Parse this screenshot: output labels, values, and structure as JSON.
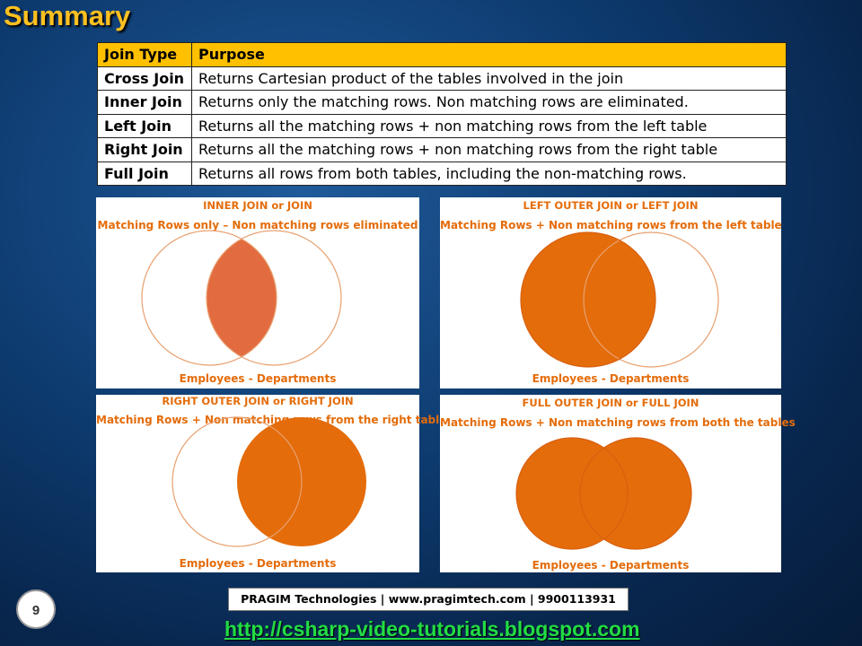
{
  "slide": {
    "title": "Summary",
    "page_number": "9"
  },
  "table": {
    "headers": [
      "Join Type",
      "Purpose"
    ],
    "rows": [
      {
        "type": "Cross Join",
        "purpose": "Returns Cartesian product of the tables involved in the join"
      },
      {
        "type": "Inner Join",
        "purpose": "Returns only the matching rows. Non matching rows are eliminated."
      },
      {
        "type": "Left Join",
        "purpose": "Returns all the matching rows + non matching rows from the left table"
      },
      {
        "type": "Right Join",
        "purpose": "Returns all the matching rows + non matching rows from the right table"
      },
      {
        "type": "Full Join",
        "purpose": "Returns all rows from both tables, including the non-matching rows."
      }
    ]
  },
  "diagrams": [
    {
      "title": "INNER JOIN or JOIN",
      "subtitle": "Matching Rows only – Non matching rows eliminated",
      "footer": "Employees - Departments",
      "fill": "intersection"
    },
    {
      "title": "LEFT OUTER JOIN or LEFT JOIN",
      "subtitle": "Matching Rows + Non matching rows from the left table",
      "footer": "Employees - Departments",
      "fill": "left"
    },
    {
      "title": "RIGHT OUTER JOIN or RIGHT JOIN",
      "subtitle": "Matching Rows + Non matching rows from the right table",
      "footer": "Employees - Departments",
      "fill": "right"
    },
    {
      "title": "FULL OUTER JOIN or FULL JOIN",
      "subtitle": "Matching Rows + Non matching rows from both the tables",
      "footer": "Employees - Departments",
      "fill": "both"
    }
  ],
  "footer": {
    "company": "PRAGIM Technologies | www.pragimtech.com | 9900113931",
    "url": "http://csharp-video-tutorials.blogspot.com"
  },
  "colors": {
    "accent": "#ffc000",
    "venn_fill": "#e46c0a",
    "inner_fill": "#e26b3f",
    "title": "#ffc020",
    "url": "#22dd44"
  }
}
